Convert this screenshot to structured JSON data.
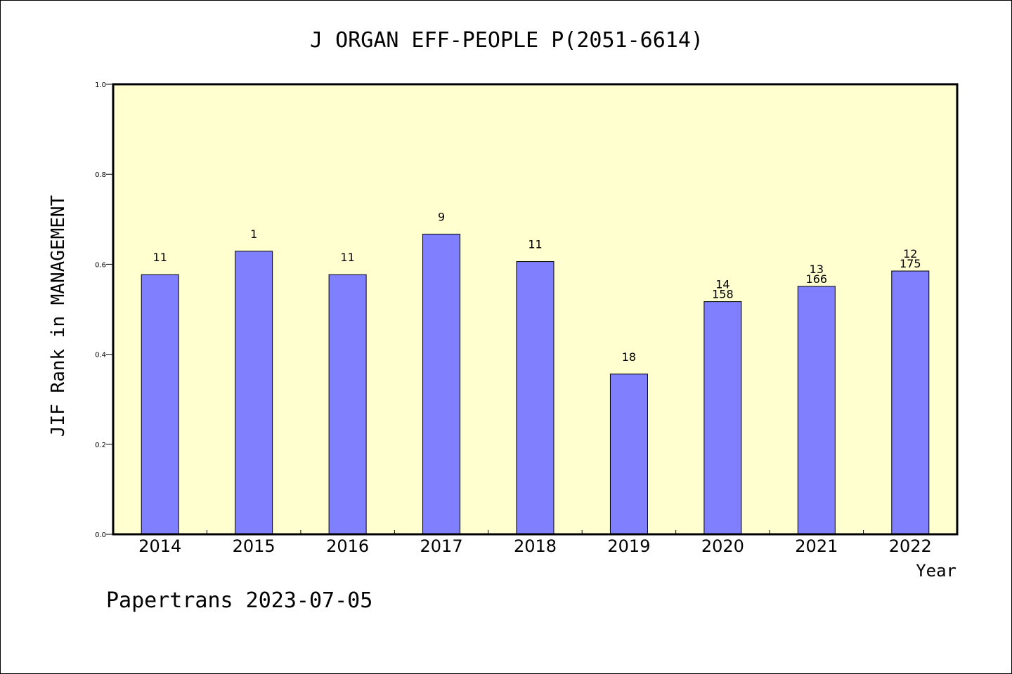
{
  "chart_data": {
    "type": "bar",
    "title": "J ORGAN EFF-PEOPLE P(2051-6614)",
    "xlabel": "Year",
    "ylabel": "JIF Rank in MANAGEMENT",
    "ylim": [
      0,
      1.0
    ],
    "yticks": [
      "0.0",
      "0.2",
      "0.4",
      "0.6",
      "0.8",
      "1.0"
    ],
    "grid": false,
    "background_color": "#ffffd0",
    "bar_color": "#8080ff",
    "categories": [
      "2014",
      "2015",
      "2016",
      "2017",
      "2018",
      "2019",
      "2020",
      "2021",
      "2022"
    ],
    "values": [
      0.577,
      0.629,
      0.577,
      0.667,
      0.606,
      0.356,
      0.517,
      0.551,
      0.585
    ],
    "bar_labels": [
      [
        "11"
      ],
      [
        "1"
      ],
      [
        "11"
      ],
      [
        "9"
      ],
      [
        "11"
      ],
      [
        "18"
      ],
      [
        "14",
        "158"
      ],
      [
        "13",
        "166"
      ],
      [
        "12",
        "175"
      ]
    ]
  },
  "footer": "Papertrans 2023-07-05"
}
